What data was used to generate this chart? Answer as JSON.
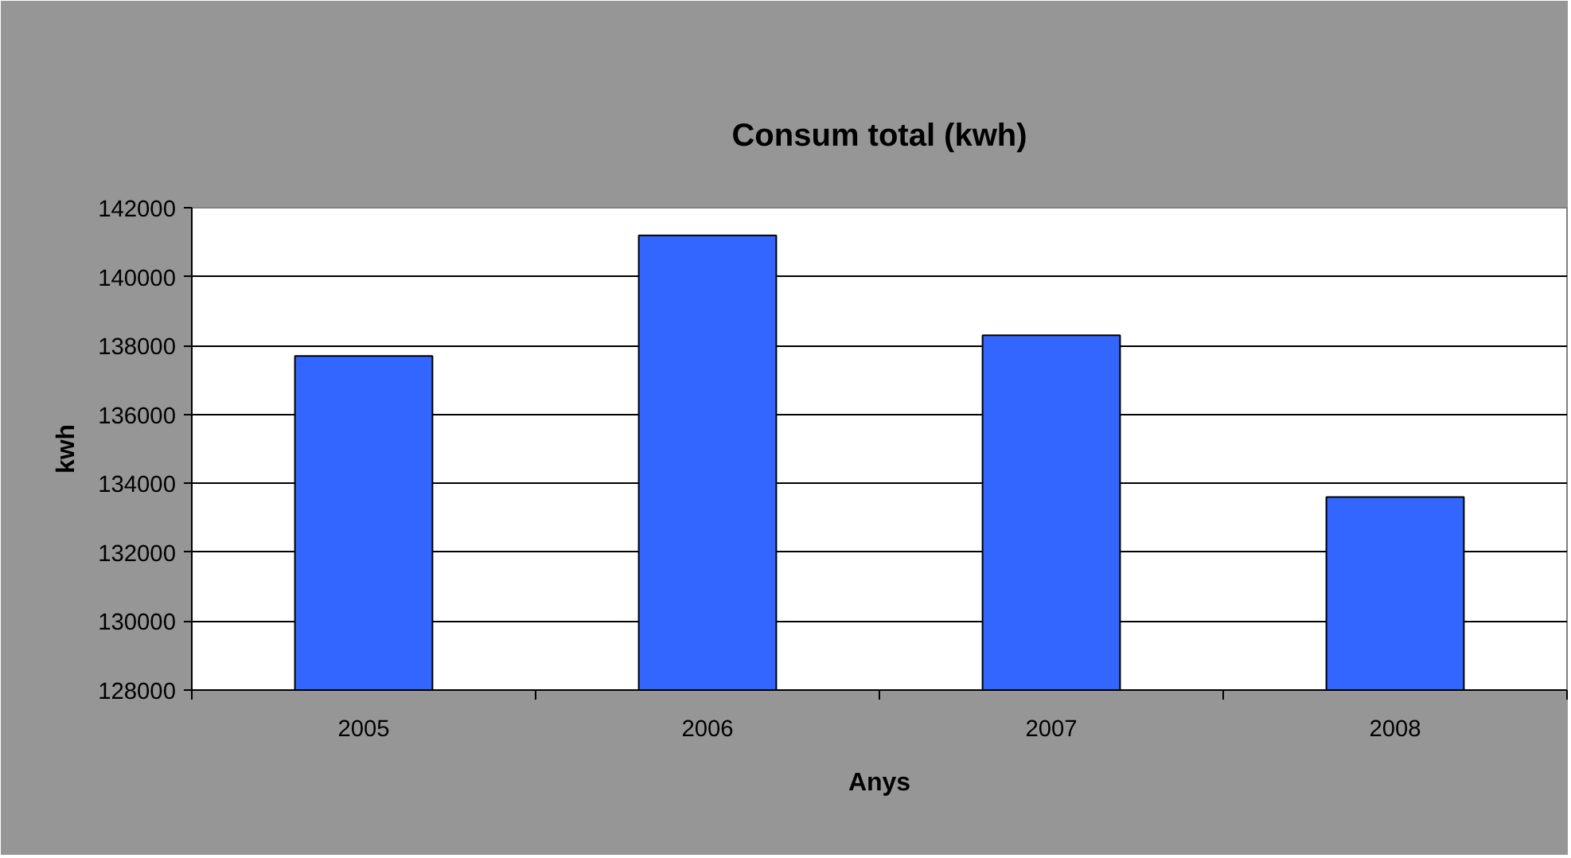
{
  "chart_data": {
    "type": "bar",
    "title": "Consum total (kwh)",
    "xlabel": "Anys",
    "ylabel": "kwh",
    "categories": [
      "2005",
      "2006",
      "2007",
      "2008"
    ],
    "values": [
      137700,
      141200,
      138300,
      133600
    ],
    "color": "#3366ff",
    "ylim": [
      128000,
      142000
    ],
    "yticks": [
      128000,
      130000,
      132000,
      134000,
      136000,
      138000,
      140000,
      142000
    ],
    "grid": "y"
  }
}
